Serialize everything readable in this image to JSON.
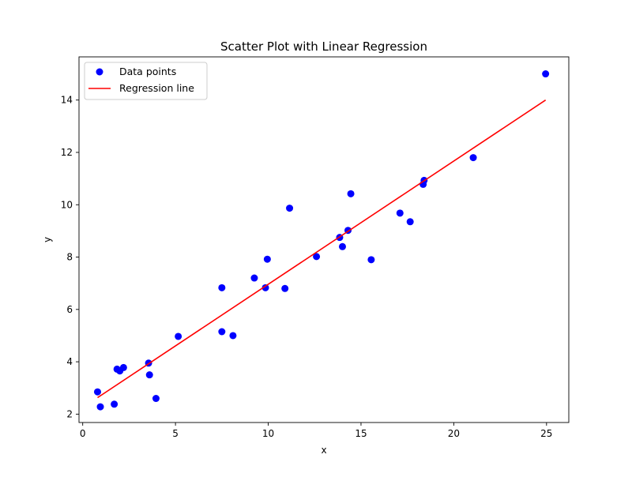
{
  "chart_data": {
    "type": "scatter",
    "title": "Scatter Plot with Linear Regression",
    "xlabel": "x",
    "ylabel": "y",
    "xlim": [
      -0.2,
      26.2
    ],
    "ylim": [
      1.68,
      15.65
    ],
    "grid": false,
    "legend_position": "top-left",
    "x_ticks": [
      0,
      5,
      10,
      15,
      20,
      25
    ],
    "y_ticks": [
      2,
      4,
      6,
      8,
      10,
      12,
      14
    ],
    "series": [
      {
        "name": "Data points",
        "kind": "scatter",
        "color": "#0000ff",
        "points": [
          {
            "x": 0.8,
            "y": 2.85
          },
          {
            "x": 0.95,
            "y": 2.28
          },
          {
            "x": 1.7,
            "y": 2.38
          },
          {
            "x": 1.85,
            "y": 3.72
          },
          {
            "x": 2.0,
            "y": 3.65
          },
          {
            "x": 2.2,
            "y": 3.78
          },
          {
            "x": 3.55,
            "y": 3.95
          },
          {
            "x": 3.6,
            "y": 3.5
          },
          {
            "x": 3.95,
            "y": 2.6
          },
          {
            "x": 5.15,
            "y": 4.97
          },
          {
            "x": 7.5,
            "y": 6.83
          },
          {
            "x": 7.5,
            "y": 5.15
          },
          {
            "x": 8.1,
            "y": 5.0
          },
          {
            "x": 9.25,
            "y": 7.2
          },
          {
            "x": 9.85,
            "y": 6.83
          },
          {
            "x": 9.95,
            "y": 7.92
          },
          {
            "x": 10.9,
            "y": 6.8
          },
          {
            "x": 11.15,
            "y": 9.87
          },
          {
            "x": 12.6,
            "y": 8.02
          },
          {
            "x": 13.85,
            "y": 8.75
          },
          {
            "x": 14.0,
            "y": 8.4
          },
          {
            "x": 14.3,
            "y": 9.02
          },
          {
            "x": 14.45,
            "y": 10.42
          },
          {
            "x": 15.55,
            "y": 7.9
          },
          {
            "x": 17.1,
            "y": 9.68
          },
          {
            "x": 17.65,
            "y": 9.35
          },
          {
            "x": 18.35,
            "y": 10.78
          },
          {
            "x": 18.4,
            "y": 10.93
          },
          {
            "x": 21.05,
            "y": 11.8
          },
          {
            "x": 24.95,
            "y": 15.0
          }
        ]
      },
      {
        "name": "Regression line",
        "kind": "line",
        "color": "#ff0000",
        "points": [
          {
            "x": 0.8,
            "y": 2.63
          },
          {
            "x": 24.95,
            "y": 14.0
          }
        ]
      }
    ]
  }
}
